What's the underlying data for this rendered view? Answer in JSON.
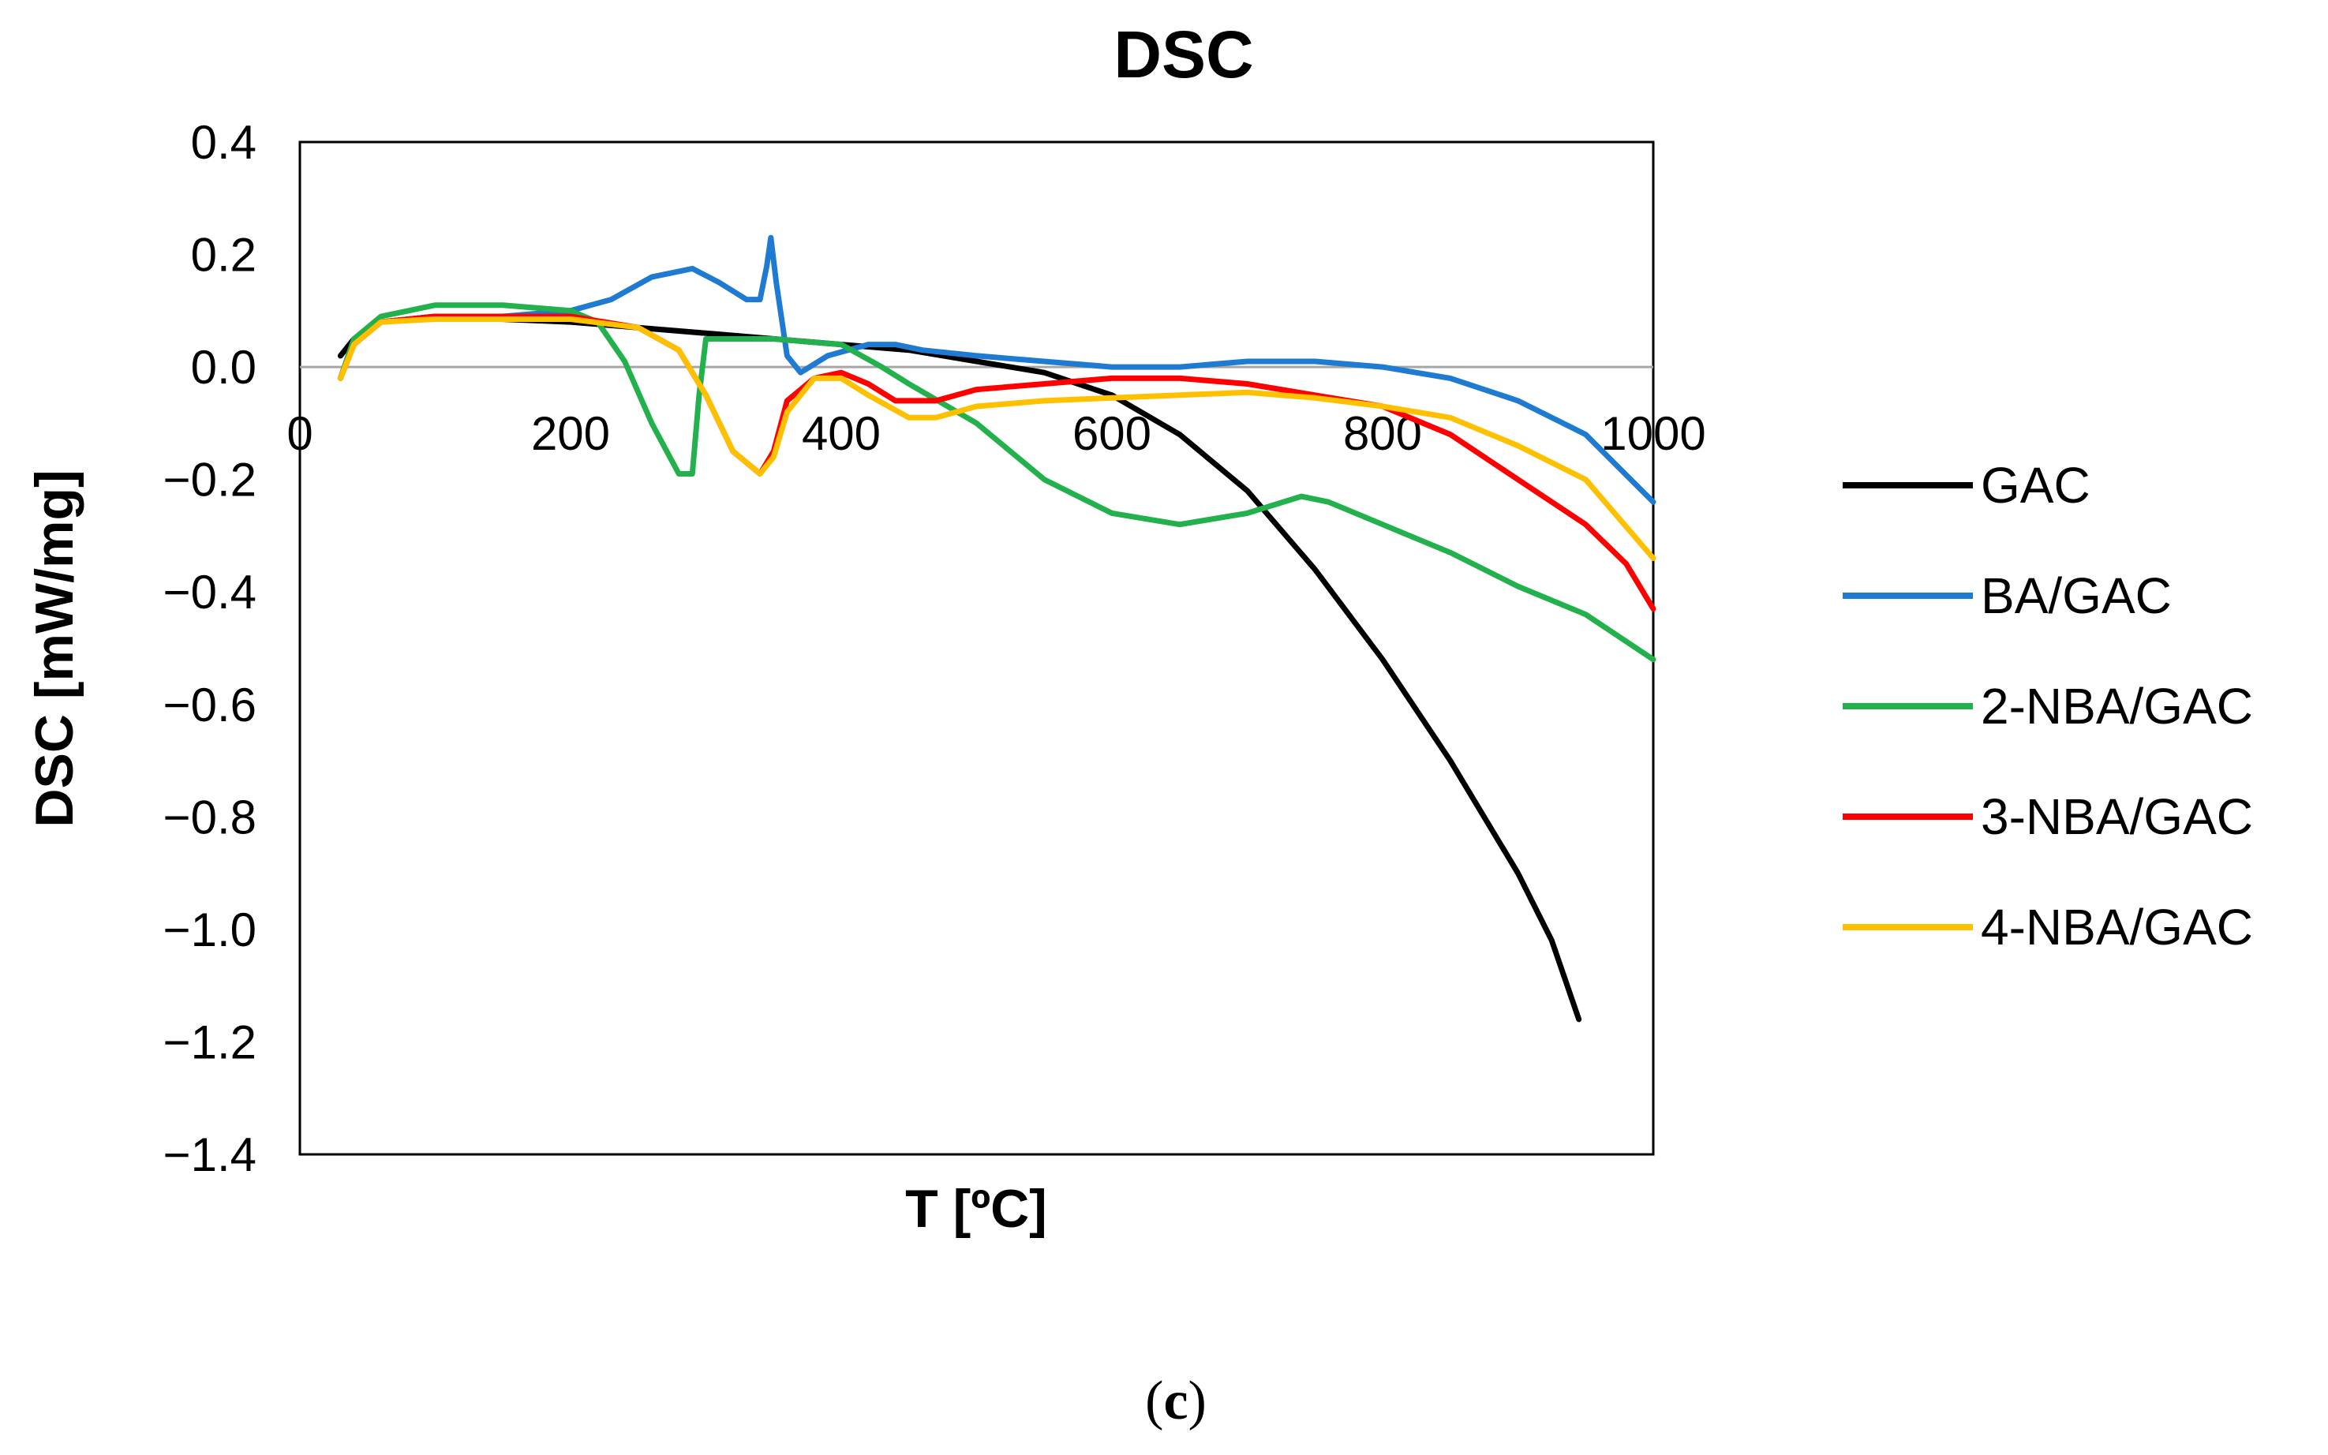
{
  "chart_data": {
    "type": "line",
    "title": "DSC",
    "xlabel": "T [ºC]",
    "ylabel": "DSC [mW/mg]",
    "xlim": [
      0,
      1000
    ],
    "ylim": [
      -1.4,
      0.4
    ],
    "x_ticks": [
      "0",
      "200",
      "400",
      "600",
      "800",
      "1000"
    ],
    "y_ticks": [
      "0.4",
      "0.2",
      "0.0",
      "−0.2",
      "−0.4",
      "−0.6",
      "−0.8",
      "−1.0",
      "−1.2",
      "−1.4"
    ],
    "y_tick_values": [
      0.4,
      0.2,
      0.0,
      -0.2,
      -0.4,
      -0.6,
      -0.8,
      -1.0,
      -1.2,
      -1.4
    ],
    "x_tick_values": [
      0,
      200,
      400,
      600,
      800,
      1000
    ],
    "grid": false,
    "legend_position": "right",
    "series": [
      {
        "name": "GAC",
        "color": "#000000",
        "points": [
          [
            30,
            0.02
          ],
          [
            40,
            0.05
          ],
          [
            60,
            0.08
          ],
          [
            100,
            0.09
          ],
          [
            200,
            0.08
          ],
          [
            300,
            0.06
          ],
          [
            400,
            0.04
          ],
          [
            450,
            0.03
          ],
          [
            500,
            0.01
          ],
          [
            550,
            -0.01
          ],
          [
            600,
            -0.05
          ],
          [
            650,
            -0.12
          ],
          [
            700,
            -0.22
          ],
          [
            750,
            -0.36
          ],
          [
            800,
            -0.52
          ],
          [
            850,
            -0.7
          ],
          [
            900,
            -0.9
          ],
          [
            925,
            -1.02
          ],
          [
            945,
            -1.16
          ]
        ]
      },
      {
        "name": "BA/GAC",
        "color": "#1f7bd1",
        "points": [
          [
            30,
            -0.02
          ],
          [
            40,
            0.05
          ],
          [
            60,
            0.08
          ],
          [
            100,
            0.09
          ],
          [
            150,
            0.09
          ],
          [
            200,
            0.1
          ],
          [
            230,
            0.12
          ],
          [
            260,
            0.16
          ],
          [
            290,
            0.175
          ],
          [
            310,
            0.15
          ],
          [
            330,
            0.12
          ],
          [
            340,
            0.12
          ],
          [
            345,
            0.18
          ],
          [
            348,
            0.23
          ],
          [
            352,
            0.15
          ],
          [
            360,
            0.02
          ],
          [
            370,
            -0.01
          ],
          [
            390,
            0.02
          ],
          [
            420,
            0.04
          ],
          [
            440,
            0.04
          ],
          [
            460,
            0.03
          ],
          [
            500,
            0.02
          ],
          [
            600,
            0.0
          ],
          [
            650,
            0.0
          ],
          [
            700,
            0.01
          ],
          [
            750,
            0.01
          ],
          [
            800,
            0.0
          ],
          [
            850,
            -0.02
          ],
          [
            900,
            -0.06
          ],
          [
            950,
            -0.12
          ],
          [
            1000,
            -0.24
          ]
        ]
      },
      {
        "name": "2-NBA/GAC",
        "color": "#22b14c",
        "points": [
          [
            30,
            -0.02
          ],
          [
            40,
            0.05
          ],
          [
            60,
            0.09
          ],
          [
            100,
            0.11
          ],
          [
            150,
            0.11
          ],
          [
            200,
            0.1
          ],
          [
            220,
            0.08
          ],
          [
            240,
            0.01
          ],
          [
            260,
            -0.1
          ],
          [
            280,
            -0.19
          ],
          [
            290,
            -0.19
          ],
          [
            295,
            -0.05
          ],
          [
            300,
            0.05
          ],
          [
            320,
            0.05
          ],
          [
            350,
            0.05
          ],
          [
            400,
            0.04
          ],
          [
            430,
            0.0
          ],
          [
            450,
            -0.03
          ],
          [
            500,
            -0.1
          ],
          [
            550,
            -0.2
          ],
          [
            600,
            -0.26
          ],
          [
            650,
            -0.28
          ],
          [
            700,
            -0.26
          ],
          [
            740,
            -0.23
          ],
          [
            760,
            -0.24
          ],
          [
            800,
            -0.28
          ],
          [
            850,
            -0.33
          ],
          [
            900,
            -0.39
          ],
          [
            950,
            -0.44
          ],
          [
            1000,
            -0.52
          ]
        ]
      },
      {
        "name": "3-NBA/GAC",
        "color": "#ff0000",
        "points": [
          [
            30,
            -0.02
          ],
          [
            40,
            0.04
          ],
          [
            60,
            0.08
          ],
          [
            100,
            0.09
          ],
          [
            200,
            0.09
          ],
          [
            250,
            0.07
          ],
          [
            280,
            0.03
          ],
          [
            300,
            -0.05
          ],
          [
            320,
            -0.15
          ],
          [
            340,
            -0.19
          ],
          [
            350,
            -0.15
          ],
          [
            360,
            -0.06
          ],
          [
            380,
            -0.02
          ],
          [
            400,
            -0.01
          ],
          [
            420,
            -0.03
          ],
          [
            440,
            -0.06
          ],
          [
            470,
            -0.06
          ],
          [
            500,
            -0.04
          ],
          [
            550,
            -0.03
          ],
          [
            600,
            -0.02
          ],
          [
            650,
            -0.02
          ],
          [
            700,
            -0.03
          ],
          [
            750,
            -0.05
          ],
          [
            800,
            -0.07
          ],
          [
            850,
            -0.12
          ],
          [
            900,
            -0.2
          ],
          [
            950,
            -0.28
          ],
          [
            980,
            -0.35
          ],
          [
            1000,
            -0.43
          ]
        ]
      },
      {
        "name": "4-NBA/GAC",
        "color": "#ffc000",
        "points": [
          [
            30,
            -0.02
          ],
          [
            40,
            0.04
          ],
          [
            60,
            0.08
          ],
          [
            100,
            0.085
          ],
          [
            200,
            0.085
          ],
          [
            250,
            0.07
          ],
          [
            280,
            0.03
          ],
          [
            300,
            -0.05
          ],
          [
            320,
            -0.15
          ],
          [
            340,
            -0.19
          ],
          [
            350,
            -0.16
          ],
          [
            360,
            -0.08
          ],
          [
            380,
            -0.02
          ],
          [
            400,
            -0.02
          ],
          [
            420,
            -0.05
          ],
          [
            450,
            -0.09
          ],
          [
            470,
            -0.09
          ],
          [
            500,
            -0.07
          ],
          [
            550,
            -0.06
          ],
          [
            600,
            -0.055
          ],
          [
            650,
            -0.05
          ],
          [
            700,
            -0.045
          ],
          [
            750,
            -0.055
          ],
          [
            800,
            -0.07
          ],
          [
            850,
            -0.09
          ],
          [
            900,
            -0.14
          ],
          [
            950,
            -0.2
          ],
          [
            1000,
            -0.34
          ]
        ]
      }
    ]
  },
  "caption": "c"
}
